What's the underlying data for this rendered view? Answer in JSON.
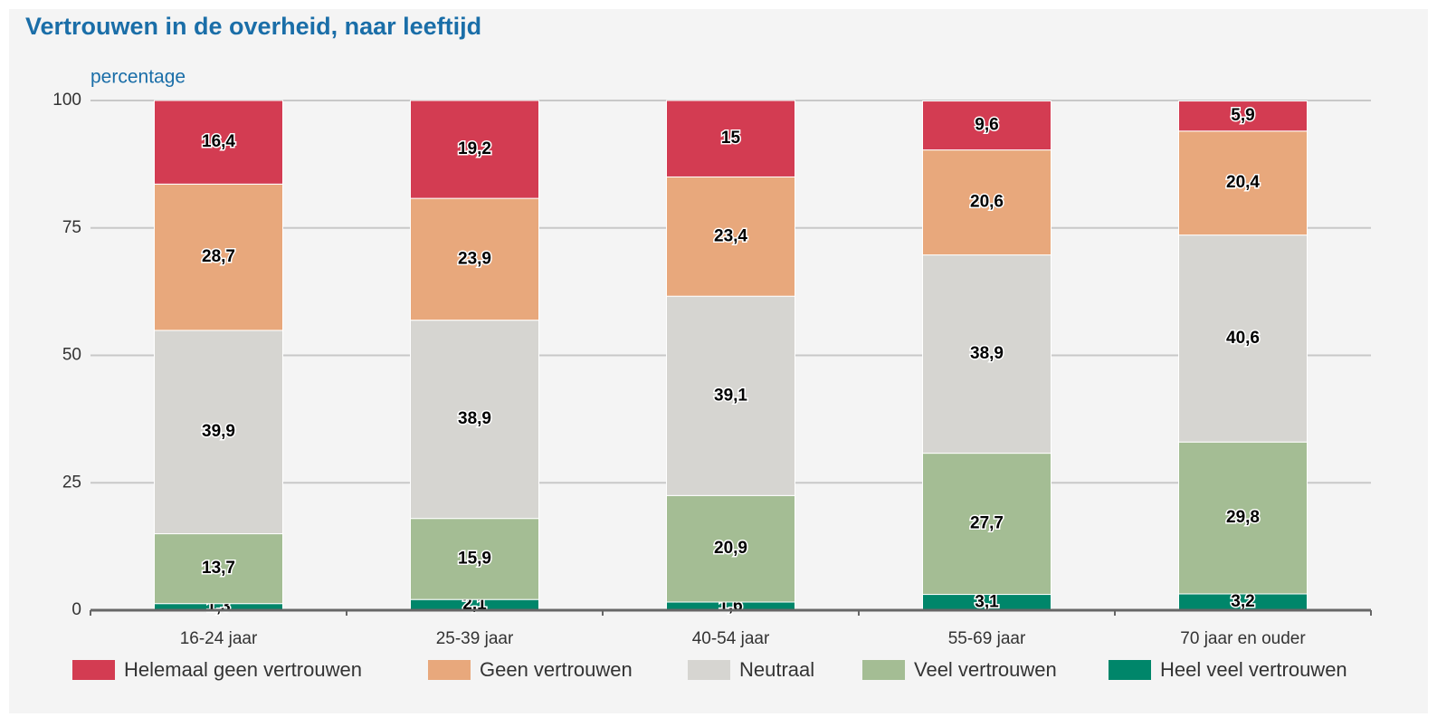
{
  "chart_data": {
    "type": "stacked_bar",
    "title": "Vertrouwen in de overheid, naar leeftijd",
    "y_label": "percentage",
    "categories": [
      "16-24 jaar",
      "25-39 jaar",
      "40-54 jaar",
      "55-69 jaar",
      "70 jaar en ouder"
    ],
    "series": [
      {
        "name": "Helemaal geen vertrouwen",
        "color": "#d33c52",
        "values": [
          16.4,
          19.2,
          15,
          9.6,
          5.9
        ],
        "value_labels": [
          "16,4",
          "19,2",
          "15",
          "9,6",
          "5,9"
        ]
      },
      {
        "name": "Geen vertrouwen",
        "color": "#e8a87c",
        "values": [
          28.7,
          23.9,
          23.4,
          20.6,
          20.4
        ],
        "value_labels": [
          "28,7",
          "23,9",
          "23,4",
          "20,6",
          "20,4"
        ]
      },
      {
        "name": "Neutraal",
        "color": "#d6d5d1",
        "values": [
          39.9,
          38.9,
          39.1,
          38.9,
          40.6
        ],
        "value_labels": [
          "39,9",
          "38,9",
          "39,1",
          "38,9",
          "40,6"
        ]
      },
      {
        "name": "Veel vertrouwen",
        "color": "#a4bd94",
        "values": [
          13.7,
          15.9,
          20.9,
          27.7,
          29.8
        ],
        "value_labels": [
          "13,7",
          "15,9",
          "20,9",
          "27,7",
          "29,8"
        ]
      },
      {
        "name": "Heel veel vertrouwen",
        "color": "#00866a",
        "values": [
          1.3,
          2.1,
          1.6,
          3.1,
          3.2
        ],
        "value_labels": [
          "1,3",
          "2,1",
          "1,6",
          "3,1",
          "3,2"
        ]
      }
    ],
    "ylim": [
      0,
      100
    ],
    "yticks": [
      0,
      25,
      50,
      75,
      100
    ],
    "grid": true
  }
}
